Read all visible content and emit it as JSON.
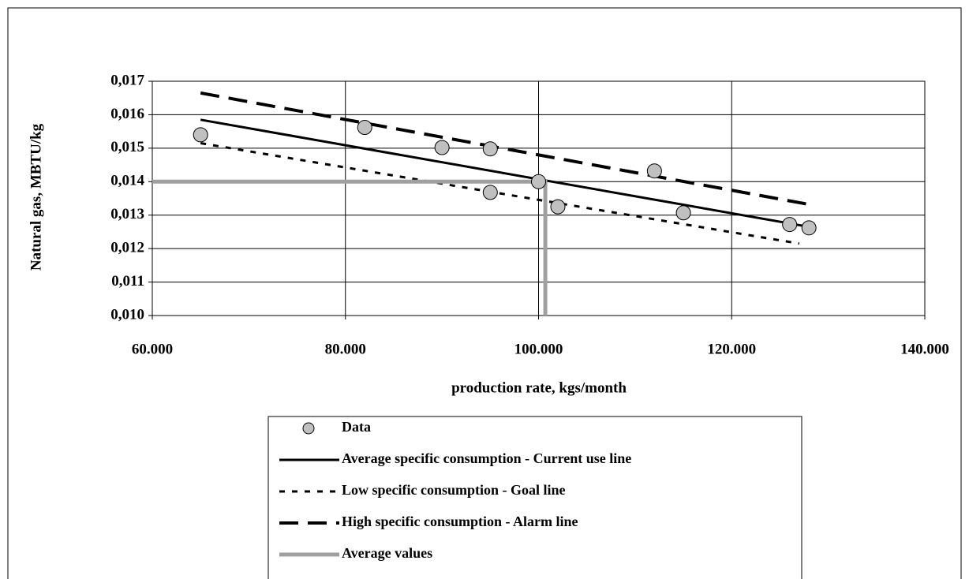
{
  "chart_data": {
    "type": "line",
    "x_label": "production rate, kgs/month",
    "y_label": "Natural gas, MBTU/kg",
    "xlim": [
      60000,
      140000
    ],
    "xticks": [
      {
        "value": 60000,
        "label": "60.000"
      },
      {
        "value": 80000,
        "label": "80.000"
      },
      {
        "value": 100000,
        "label": "100.000"
      },
      {
        "value": 120000,
        "label": "120.000"
      },
      {
        "value": 140000,
        "label": "140.000"
      }
    ],
    "ylim": [
      0.01,
      0.017
    ],
    "yticks": [
      {
        "value": 0.01,
        "label": "0,010"
      },
      {
        "value": 0.011,
        "label": "0,011"
      },
      {
        "value": 0.012,
        "label": "0,012"
      },
      {
        "value": 0.013,
        "label": "0,013"
      },
      {
        "value": 0.014,
        "label": "0,014"
      },
      {
        "value": 0.015,
        "label": "0,015"
      },
      {
        "value": 0.016,
        "label": "0,016"
      },
      {
        "value": 0.017,
        "label": "0,017"
      }
    ],
    "grid": true,
    "legend": "bottom",
    "series": [
      {
        "name": "Data",
        "style": "marker",
        "color": "#c0c0c0",
        "x": [
          65000,
          82000,
          90000,
          95000,
          95000,
          100000,
          102000,
          112000,
          115000,
          126000,
          128000
        ],
        "values": [
          0.0154,
          0.01562,
          0.01502,
          0.01498,
          0.01368,
          0.014,
          0.01325,
          0.01432,
          0.01307,
          0.01272,
          0.01262
        ]
      },
      {
        "name": "Average specific consumption - Current use line",
        "style": "solid",
        "color": "#000000",
        "x": [
          65000,
          128000
        ],
        "values": [
          0.01585,
          0.01265
        ]
      },
      {
        "name": "Low specific consumption - Goal line",
        "style": "dotted",
        "color": "#000000",
        "x": [
          65000,
          127000
        ],
        "values": [
          0.01515,
          0.01215
        ]
      },
      {
        "name": "High specific consumption - Alarm line",
        "style": "dashed",
        "color": "#000000",
        "x": [
          65000,
          128000
        ],
        "values": [
          0.01665,
          0.01332
        ]
      },
      {
        "name": "Average values",
        "style": "thick",
        "color": "#a0a0a0",
        "x": [
          60000,
          100700,
          100700
        ],
        "values": [
          0.014,
          0.014,
          0.01
        ]
      }
    ]
  }
}
